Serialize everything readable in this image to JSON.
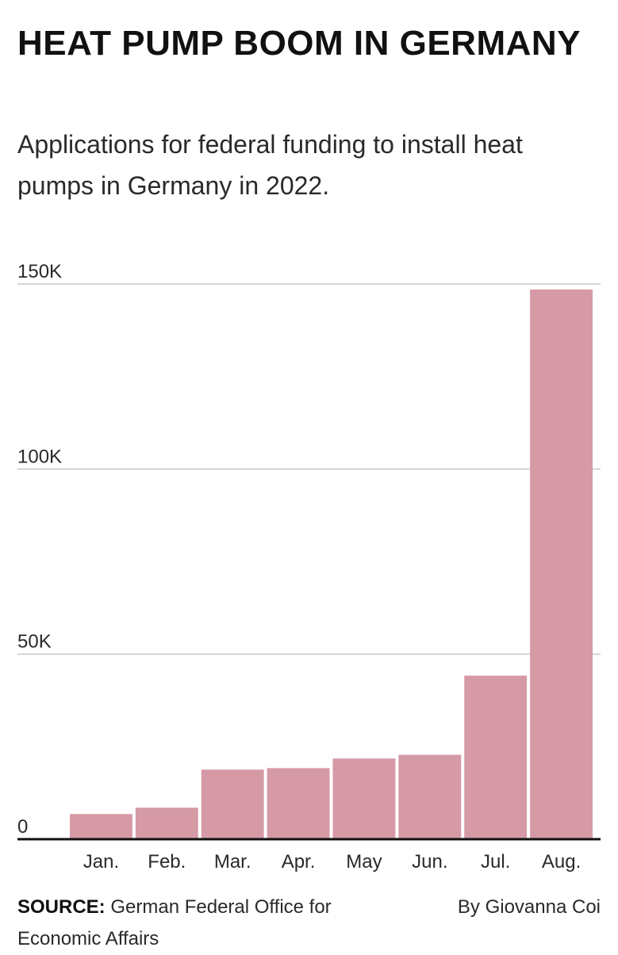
{
  "header": {
    "title": "HEAT PUMP BOOM IN GERMANY",
    "subtitle": "Applications for federal funding to install heat pumps in Germany in 2022."
  },
  "chart_data": {
    "type": "bar",
    "title": "HEAT PUMP BOOM IN GERMANY",
    "subtitle": "Applications for federal funding to install heat pumps in Germany in 2022.",
    "xlabel": "",
    "ylabel": "",
    "categories": [
      "Jan.",
      "Feb.",
      "Mar.",
      "Apr.",
      "May",
      "Jun.",
      "Jul.",
      "Aug."
    ],
    "values": [
      6800,
      8500,
      18800,
      19200,
      21800,
      22800,
      44200,
      148500
    ],
    "ylim": [
      0,
      150000
    ],
    "yticks": [
      0,
      50000,
      100000,
      150000
    ],
    "ytick_labels": [
      "0",
      "50K",
      "100K",
      "150K"
    ],
    "grid": true,
    "legend": "none",
    "bar_color": "#d59aa6"
  },
  "footer": {
    "source_label": "SOURCE:",
    "source_text": "German Federal Office for Economic Affairs",
    "byline": "By Giovanna Coi"
  }
}
